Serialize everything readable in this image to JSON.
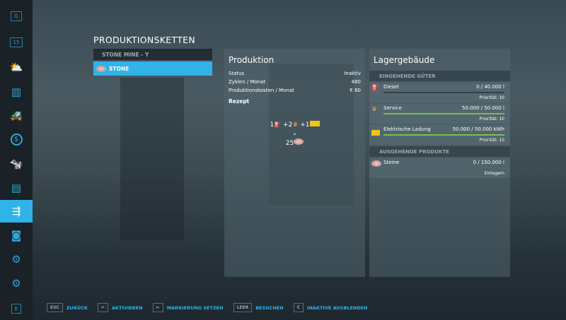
{
  "sidebar": {
    "items": [
      {
        "icon": "q-key-icon",
        "label": "Q"
      },
      {
        "icon": "calendar-icon",
        "label": "15"
      },
      {
        "icon": "weather-icon"
      },
      {
        "icon": "statistics-icon"
      },
      {
        "icon": "tractor-icon"
      },
      {
        "icon": "finance-icon",
        "label": "$"
      },
      {
        "icon": "animals-icon"
      },
      {
        "icon": "contracts-icon"
      },
      {
        "icon": "production-chains-icon",
        "active": true
      },
      {
        "icon": "tutorial-icon"
      },
      {
        "icon": "vehicle-settings-icon"
      },
      {
        "icon": "settings-gear-icon"
      },
      {
        "icon": "e-key-icon",
        "label": "E"
      }
    ]
  },
  "page_title": "PRODUKTIONSKETTEN",
  "list": {
    "header": "STONE MINE  - Y",
    "selected": "STONE"
  },
  "production": {
    "title": "Produktion",
    "rows": [
      {
        "label": "Status",
        "value": "Inaktiv"
      },
      {
        "label": "Zyklen / Monat",
        "value": "480"
      },
      {
        "label": "Produktionskosten / Monat",
        "value": "€ 60"
      }
    ],
    "recipe_label": "Rezept",
    "recipe_inputs": [
      {
        "amount": "1",
        "item": "Diesel"
      },
      {
        "amount": "+2",
        "item": "Service"
      },
      {
        "amount": "+1",
        "item": "Elektrische Ladung"
      }
    ],
    "recipe_output": {
      "amount": "25",
      "item": "Steine"
    }
  },
  "storage": {
    "title": "Lagergebäude",
    "incoming_header": "EINGEHENDE GÜTER",
    "incoming": [
      {
        "name": "Diesel",
        "amount": "0  / 40.000 l",
        "priority": "Priorität: 10",
        "fill": 0
      },
      {
        "name": "Service",
        "amount": "50.000  / 50.000 l",
        "priority": "Priorität: 10",
        "fill": 1
      },
      {
        "name": "Elektrische Ladung",
        "amount": "50.000  / 50.000 kWh",
        "priority": "Priorität: 10",
        "fill": 1
      }
    ],
    "outgoing_header": "AUSGEHENDE PRODUKTE",
    "outgoing": [
      {
        "name": "Steine",
        "amount": "0  / 150.000 l",
        "mode": "Einlagern",
        "fill": 0
      }
    ]
  },
  "footer": [
    {
      "key": "ESC",
      "label": "ZURÜCK"
    },
    {
      "key": "↵",
      "label": "AKTIVIEREN"
    },
    {
      "key": "⇤",
      "label": "MARKIERUNG SETZEN"
    },
    {
      "key": "LEER",
      "label": "BESUCHEN"
    },
    {
      "key": "C",
      "label": "INAKTIVE AUSBLENDEN"
    }
  ],
  "colors": {
    "accent": "#2fb3e8",
    "fill_bar": "#7ac143",
    "sidebar": "#1a2127"
  }
}
